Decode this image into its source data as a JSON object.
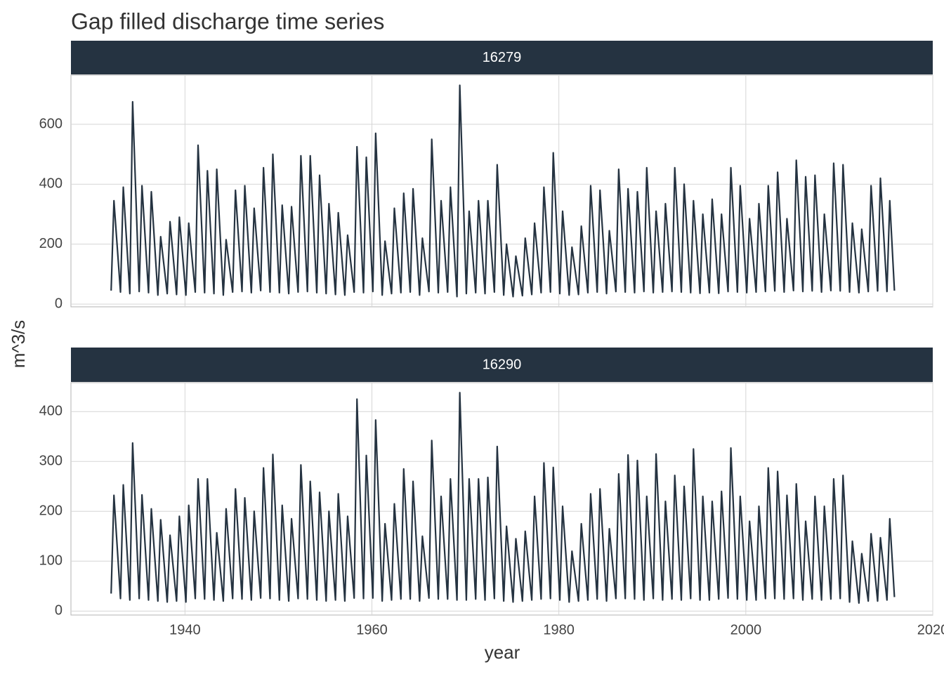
{
  "title": "Gap filled discharge time series",
  "x_label": "year",
  "y_label": "m^3/s",
  "chart_data": [
    {
      "type": "line",
      "facet": "16279",
      "color": "#253341",
      "grid": true,
      "xlim": [
        1927.8,
        2020
      ],
      "xticks": [
        1940,
        1960,
        1980,
        2000,
        2020
      ],
      "ylim": [
        -9,
        764
      ],
      "yticks": [
        0,
        200,
        400,
        600
      ],
      "x": [
        1932.1,
        1932.4,
        1933.1,
        1933.4,
        1934.1,
        1934.4,
        1935.1,
        1935.4,
        1936.1,
        1936.4,
        1937.1,
        1937.4,
        1938.1,
        1938.4,
        1939.1,
        1939.4,
        1940.1,
        1940.4,
        1941.1,
        1941.4,
        1942.1,
        1942.4,
        1943.1,
        1943.4,
        1944.1,
        1944.4,
        1945.1,
        1945.4,
        1946.1,
        1946.4,
        1947.1,
        1947.4,
        1948.1,
        1948.4,
        1949.1,
        1949.4,
        1950.1,
        1950.4,
        1951.1,
        1951.4,
        1952.1,
        1952.4,
        1953.1,
        1953.4,
        1954.1,
        1954.4,
        1955.1,
        1955.4,
        1956.1,
        1956.4,
        1957.1,
        1957.4,
        1958.1,
        1958.4,
        1959.1,
        1959.4,
        1960.1,
        1960.4,
        1961.1,
        1961.4,
        1962.1,
        1962.4,
        1963.1,
        1963.4,
        1964.1,
        1964.4,
        1965.1,
        1965.4,
        1966.1,
        1966.4,
        1967.1,
        1967.4,
        1968.1,
        1968.4,
        1969.1,
        1969.4,
        1970.1,
        1970.4,
        1971.1,
        1971.4,
        1972.1,
        1972.4,
        1973.1,
        1973.4,
        1974.1,
        1974.4,
        1975.1,
        1975.4,
        1976.1,
        1976.4,
        1977.1,
        1977.4,
        1978.1,
        1978.4,
        1979.1,
        1979.4,
        1980.1,
        1980.4,
        1981.1,
        1981.4,
        1982.1,
        1982.4,
        1983.1,
        1983.4,
        1984.1,
        1984.4,
        1985.1,
        1985.4,
        1986.1,
        1986.4,
        1987.1,
        1987.4,
        1988.1,
        1988.4,
        1989.1,
        1989.4,
        1990.1,
        1990.4,
        1991.1,
        1991.4,
        1992.1,
        1992.4,
        1993.1,
        1993.4,
        1994.1,
        1994.4,
        1995.1,
        1995.4,
        1996.1,
        1996.4,
        1997.1,
        1997.4,
        1998.1,
        1998.4,
        1999.1,
        1999.4,
        2000.1,
        2000.4,
        2001.1,
        2001.4,
        2002.1,
        2002.4,
        2003.1,
        2003.4,
        2004.1,
        2004.4,
        2005.1,
        2005.4,
        2006.1,
        2006.4,
        2007.1,
        2007.4,
        2008.1,
        2008.4,
        2009.1,
        2009.4,
        2010.1,
        2010.4,
        2011.1,
        2011.4,
        2012.1,
        2012.4,
        2013.1,
        2013.4,
        2014.1,
        2014.4,
        2015.1,
        2015.4,
        2015.9
      ],
      "values": [
        45,
        345,
        40,
        390,
        35,
        675,
        42,
        395,
        38,
        375,
        30,
        225,
        35,
        275,
        32,
        290,
        30,
        270,
        40,
        530,
        38,
        445,
        35,
        450,
        30,
        215,
        40,
        380,
        42,
        395,
        38,
        320,
        45,
        455,
        40,
        500,
        38,
        330,
        35,
        325,
        40,
        495,
        42,
        495,
        38,
        430,
        35,
        335,
        32,
        305,
        30,
        230,
        40,
        525,
        38,
        490,
        42,
        570,
        30,
        210,
        35,
        320,
        38,
        370,
        40,
        385,
        30,
        220,
        42,
        550,
        38,
        345,
        40,
        390,
        25,
        730,
        35,
        310,
        38,
        345,
        35,
        345,
        40,
        465,
        30,
        200,
        25,
        160,
        28,
        220,
        32,
        270,
        38,
        390,
        40,
        505,
        35,
        310,
        30,
        190,
        32,
        260,
        38,
        395,
        40,
        380,
        35,
        245,
        42,
        450,
        40,
        385,
        38,
        375,
        42,
        455,
        38,
        310,
        40,
        335,
        42,
        455,
        40,
        400,
        38,
        345,
        36,
        300,
        38,
        350,
        36,
        300,
        42,
        455,
        40,
        395,
        38,
        285,
        40,
        335,
        42,
        395,
        44,
        440,
        40,
        285,
        45,
        480,
        42,
        425,
        44,
        430,
        40,
        300,
        45,
        470,
        44,
        465,
        40,
        270,
        38,
        250,
        42,
        395,
        44,
        420,
        42,
        345,
        45
      ]
    },
    {
      "type": "line",
      "facet": "16290",
      "color": "#253341",
      "grid": true,
      "xlim": [
        1927.8,
        2020
      ],
      "xticks": [
        1940,
        1960,
        1980,
        2000,
        2020
      ],
      "ylim": [
        -8,
        458
      ],
      "yticks": [
        0,
        100,
        200,
        300,
        400
      ],
      "x": [
        1932.1,
        1932.4,
        1933.1,
        1933.4,
        1934.1,
        1934.4,
        1935.1,
        1935.4,
        1936.1,
        1936.4,
        1937.1,
        1937.4,
        1938.1,
        1938.4,
        1939.1,
        1939.4,
        1940.1,
        1940.4,
        1941.1,
        1941.4,
        1942.1,
        1942.4,
        1943.1,
        1943.4,
        1944.1,
        1944.4,
        1945.1,
        1945.4,
        1946.1,
        1946.4,
        1947.1,
        1947.4,
        1948.1,
        1948.4,
        1949.1,
        1949.4,
        1950.1,
        1950.4,
        1951.1,
        1951.4,
        1952.1,
        1952.4,
        1953.1,
        1953.4,
        1954.1,
        1954.4,
        1955.1,
        1955.4,
        1956.1,
        1956.4,
        1957.1,
        1957.4,
        1958.1,
        1958.4,
        1959.1,
        1959.4,
        1960.1,
        1960.4,
        1961.1,
        1961.4,
        1962.1,
        1962.4,
        1963.1,
        1963.4,
        1964.1,
        1964.4,
        1965.1,
        1965.4,
        1966.1,
        1966.4,
        1967.1,
        1967.4,
        1968.1,
        1968.4,
        1969.1,
        1969.4,
        1970.1,
        1970.4,
        1971.1,
        1971.4,
        1972.1,
        1972.4,
        1973.1,
        1973.4,
        1974.1,
        1974.4,
        1975.1,
        1975.4,
        1976.1,
        1976.4,
        1977.1,
        1977.4,
        1978.1,
        1978.4,
        1979.1,
        1979.4,
        1980.1,
        1980.4,
        1981.1,
        1981.4,
        1982.1,
        1982.4,
        1983.1,
        1983.4,
        1984.1,
        1984.4,
        1985.1,
        1985.4,
        1986.1,
        1986.4,
        1987.1,
        1987.4,
        1988.1,
        1988.4,
        1989.1,
        1989.4,
        1990.1,
        1990.4,
        1991.1,
        1991.4,
        1992.1,
        1992.4,
        1993.1,
        1993.4,
        1994.1,
        1994.4,
        1995.1,
        1995.4,
        1996.1,
        1996.4,
        1997.1,
        1997.4,
        1998.1,
        1998.4,
        1999.1,
        1999.4,
        2000.1,
        2000.4,
        2001.1,
        2001.4,
        2002.1,
        2002.4,
        2003.1,
        2003.4,
        2004.1,
        2004.4,
        2005.1,
        2005.4,
        2006.1,
        2006.4,
        2007.1,
        2007.4,
        2008.1,
        2008.4,
        2009.1,
        2009.4,
        2010.1,
        2010.4,
        2011.1,
        2011.4,
        2012.1,
        2012.4,
        2013.1,
        2013.4,
        2014.1,
        2014.4,
        2015.1,
        2015.4,
        2015.9
      ],
      "values": [
        35,
        232,
        25,
        253,
        22,
        337,
        25,
        233,
        22,
        205,
        20,
        183,
        18,
        152,
        20,
        190,
        18,
        212,
        25,
        265,
        24,
        265,
        22,
        157,
        20,
        205,
        25,
        245,
        24,
        227,
        22,
        200,
        26,
        287,
        25,
        314,
        22,
        212,
        20,
        185,
        25,
        293,
        24,
        260,
        22,
        238,
        20,
        200,
        22,
        235,
        20,
        190,
        26,
        425,
        25,
        312,
        26,
        383,
        20,
        175,
        22,
        215,
        24,
        285,
        24,
        260,
        20,
        150,
        26,
        342,
        24,
        230,
        24,
        265,
        22,
        438,
        22,
        265,
        24,
        265,
        22,
        268,
        25,
        330,
        20,
        170,
        18,
        145,
        20,
        160,
        22,
        230,
        24,
        297,
        25,
        288,
        22,
        210,
        18,
        120,
        20,
        175,
        22,
        235,
        24,
        245,
        20,
        165,
        25,
        275,
        25,
        313,
        24,
        302,
        22,
        230,
        25,
        315,
        22,
        220,
        24,
        272,
        22,
        250,
        25,
        325,
        22,
        230,
        22,
        220,
        24,
        240,
        26,
        327,
        24,
        230,
        22,
        180,
        22,
        210,
        25,
        287,
        25,
        280,
        24,
        232,
        25,
        255,
        22,
        180,
        24,
        230,
        22,
        210,
        24,
        265,
        25,
        272,
        18,
        140,
        16,
        115,
        20,
        155,
        20,
        147,
        22,
        185,
        28
      ]
    }
  ]
}
